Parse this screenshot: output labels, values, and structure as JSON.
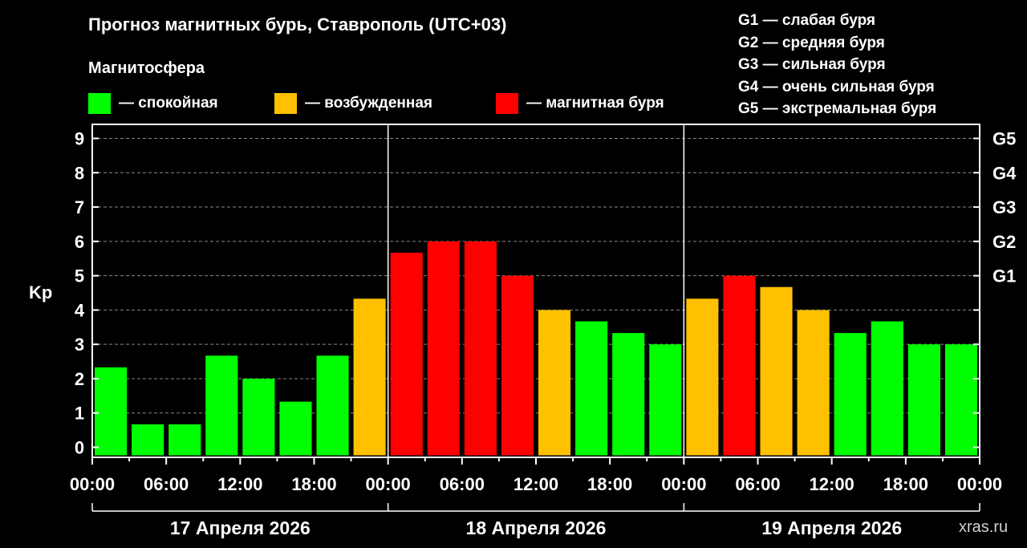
{
  "colors": {
    "calm": "#00ff00",
    "excited": "#ffc000",
    "storm": "#ff0000",
    "background": "#000000",
    "grid": "#888888",
    "text": "#ffffff"
  },
  "header": {
    "title": "Прогноз магнитных бурь, Ставрополь (UTC+03)",
    "subtitle": "Магнитосфера"
  },
  "legend": [
    {
      "color": "#00ff00",
      "label": "— спокойная"
    },
    {
      "color": "#ffc000",
      "label": "— возбужденная"
    },
    {
      "color": "#ff0000",
      "label": "— магнитная буря"
    }
  ],
  "g_legend": [
    "G1 — слабая буря",
    "G2 — средняя буря",
    "G3 — сильная буря",
    "G4 — очень сильная буря",
    "G5 — экстремальная буря"
  ],
  "watermark": "xras.ru",
  "chart_data": {
    "type": "bar",
    "ylabel": "Kp",
    "ylim": [
      0,
      9
    ],
    "yticks": [
      0,
      1,
      2,
      3,
      4,
      5,
      6,
      7,
      8,
      9
    ],
    "y2ticks": [
      {
        "value": 5,
        "label": "G1"
      },
      {
        "value": 6,
        "label": "G2"
      },
      {
        "value": 7,
        "label": "G3"
      },
      {
        "value": 8,
        "label": "G4"
      },
      {
        "value": 9,
        "label": "G5"
      }
    ],
    "grid": true,
    "xtick_labels": [
      "00:00",
      "06:00",
      "12:00",
      "18:00",
      "00:00",
      "06:00",
      "12:00",
      "18:00",
      "00:00",
      "06:00",
      "12:00",
      "18:00",
      "00:00"
    ],
    "days": [
      "17 Апреля 2026",
      "18 Апреля 2026",
      "19 Апреля 2026"
    ],
    "bars_per_day": 8,
    "values": [
      2.33,
      0.67,
      0.67,
      2.67,
      2.0,
      1.33,
      2.67,
      4.33,
      5.67,
      6.0,
      6.0,
      5.0,
      4.0,
      3.67,
      3.33,
      3.0,
      4.33,
      5.0,
      4.67,
      4.0,
      3.33,
      3.67,
      3.0,
      3.0
    ],
    "levels": [
      "calm",
      "calm",
      "calm",
      "calm",
      "calm",
      "calm",
      "calm",
      "excited",
      "storm",
      "storm",
      "storm",
      "storm",
      "excited",
      "calm",
      "calm",
      "calm",
      "excited",
      "storm",
      "excited",
      "excited",
      "calm",
      "calm",
      "calm",
      "calm"
    ]
  }
}
